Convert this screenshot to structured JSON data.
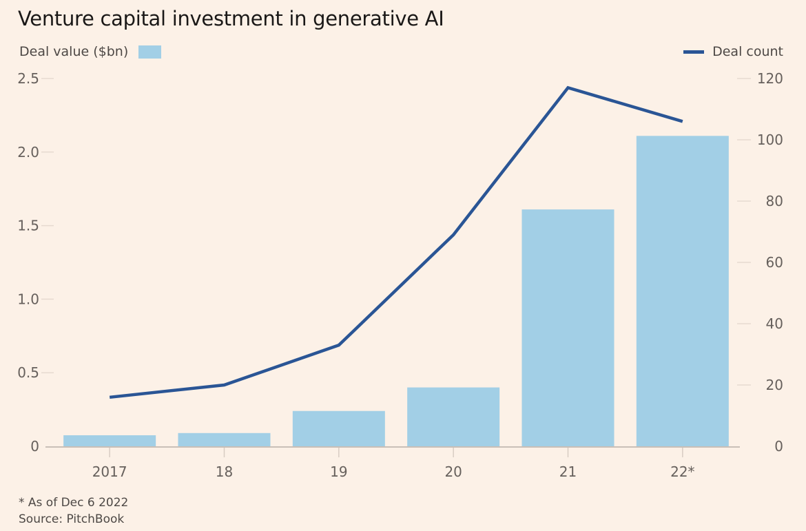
{
  "chart_data": {
    "type": "bar+line",
    "title": "Venture capital investment in generative AI",
    "categories": [
      "2017",
      "18",
      "19",
      "20",
      "21",
      "22*"
    ],
    "series": [
      {
        "name": "Deal value ($bn)",
        "type": "bar",
        "axis": "left",
        "color": "#a2cfe6",
        "values": [
          0.075,
          0.09,
          0.24,
          0.4,
          1.61,
          2.11
        ]
      },
      {
        "name": "Deal count",
        "type": "line",
        "axis": "right",
        "color": "#2a5595",
        "values": [
          16,
          20,
          33,
          69,
          117,
          106
        ]
      }
    ],
    "left_axis": {
      "ylim": [
        0,
        2.5
      ],
      "ticks": [
        "0",
        "0.5",
        "1.0",
        "1.5",
        "2.0",
        "2.5"
      ],
      "tick_values": [
        0,
        0.5,
        1.0,
        1.5,
        2.0,
        2.5
      ]
    },
    "right_axis": {
      "ylim": [
        0,
        120
      ],
      "ticks": [
        "0",
        "20",
        "40",
        "60",
        "80",
        "100",
        "120"
      ],
      "tick_values": [
        0,
        20,
        40,
        60,
        80,
        100,
        120
      ]
    },
    "grid": false,
    "legend": "top"
  },
  "footnote": "* As of Dec 6 2022",
  "source": "Source: PitchBook"
}
